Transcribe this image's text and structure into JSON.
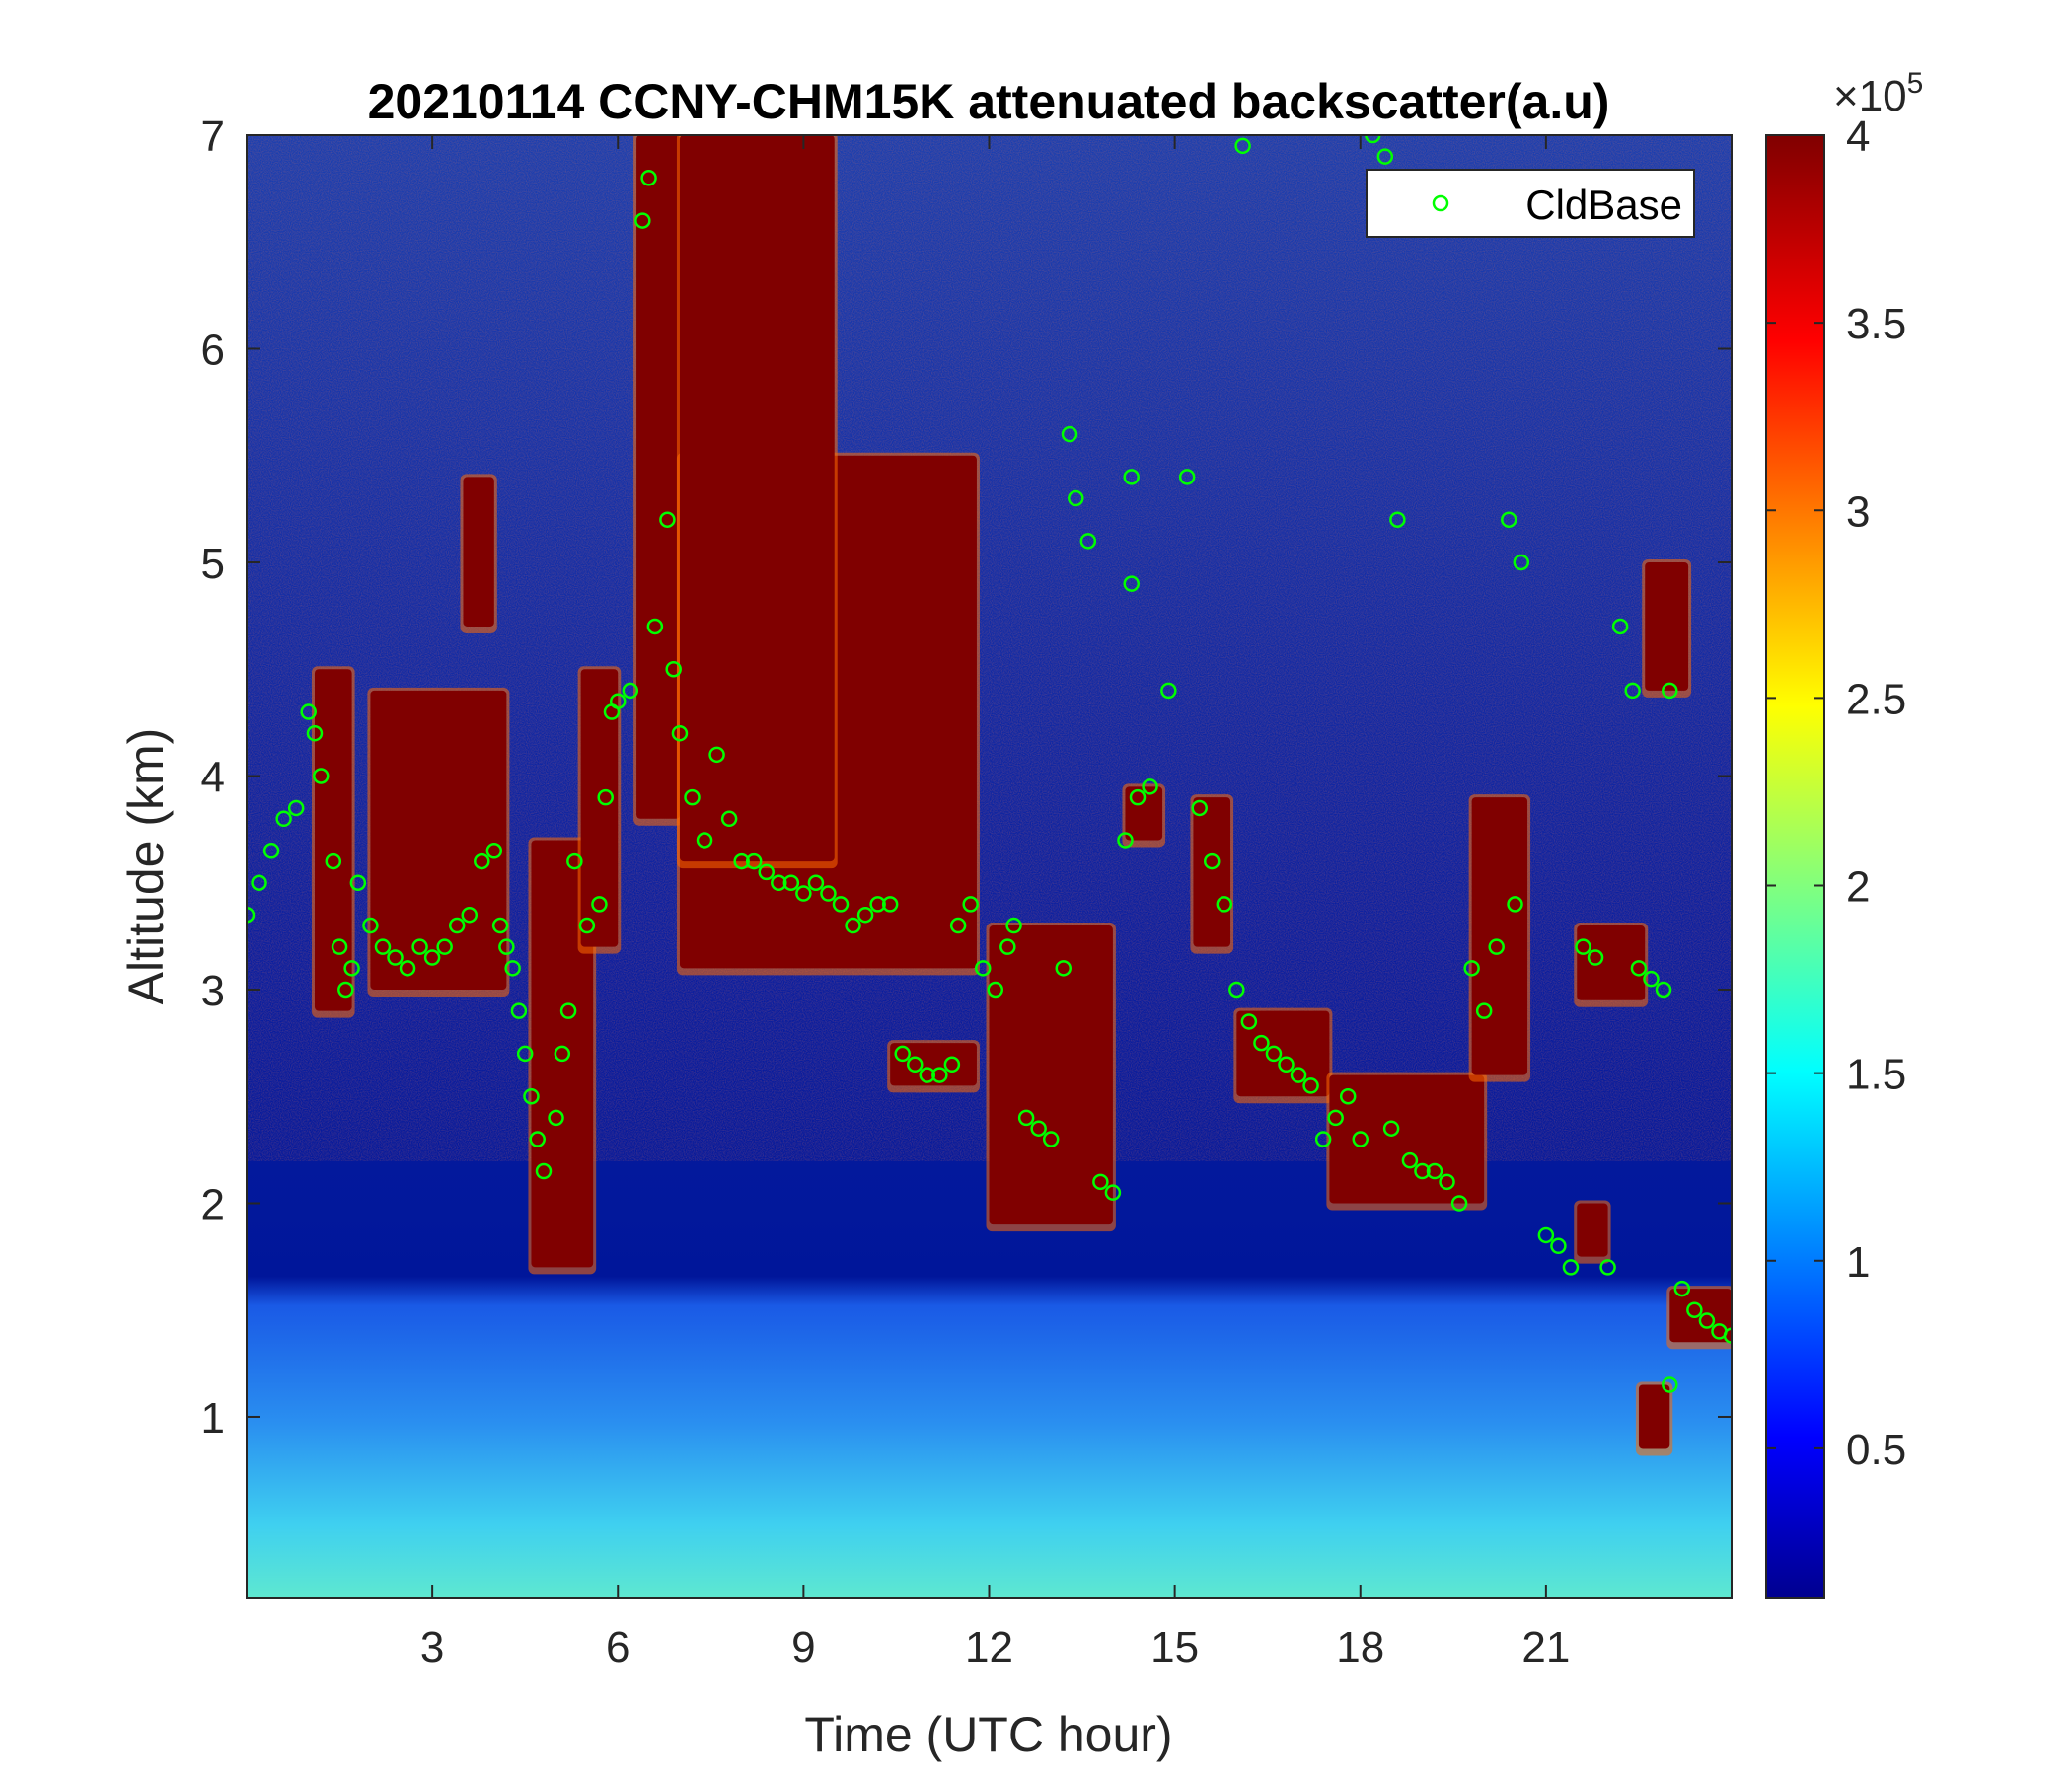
{
  "chart_data": {
    "type": "heatmap",
    "title": "20210114 CCNY-CHM15K attenuated backscatter(a.u)",
    "xlabel": "Time (UTC hour)",
    "ylabel": "Altitude (km)",
    "xlim": [
      0,
      24
    ],
    "ylim": [
      0.15,
      7
    ],
    "x_ticks": [
      3,
      6,
      9,
      12,
      15,
      18,
      21
    ],
    "y_ticks": [
      1,
      2,
      3,
      4,
      5,
      6,
      7
    ],
    "colormap": "jet",
    "colorbar": {
      "range": [
        0.1,
        4
      ],
      "ticks": [
        0.5,
        1,
        1.5,
        2,
        2.5,
        3,
        3.5,
        4
      ],
      "tick_labels": [
        "0.5",
        "1",
        "1.5",
        "2",
        "2.5",
        "3",
        "3.5",
        "4"
      ],
      "exponent_label": "×10",
      "exponent_power": "5"
    },
    "legend": {
      "entries": [
        "CldBase"
      ],
      "position": "top-right",
      "marker": "circle",
      "color": "#00ff00"
    },
    "grid": false,
    "cloud_regions": [
      {
        "x_start": 1.1,
        "x_end": 1.7,
        "bottom_km": 2.9,
        "top_km": 4.5
      },
      {
        "x_start": 2.0,
        "x_end": 4.2,
        "bottom_km": 3.0,
        "top_km": 4.4
      },
      {
        "x_start": 3.5,
        "x_end": 4.0,
        "bottom_km": 4.7,
        "top_km": 5.4
      },
      {
        "x_start": 4.6,
        "x_end": 5.6,
        "bottom_km": 1.7,
        "top_km": 3.7
      },
      {
        "x_start": 5.4,
        "x_end": 6.0,
        "bottom_km": 3.2,
        "top_km": 4.5
      },
      {
        "x_start": 6.3,
        "x_end": 7.0,
        "bottom_km": 3.8,
        "top_km": 7.0
      },
      {
        "x_start": 7.0,
        "x_end": 11.8,
        "bottom_km": 3.1,
        "top_km": 5.5
      },
      {
        "x_start": 7.0,
        "x_end": 9.5,
        "bottom_km": 3.6,
        "top_km": 7.0
      },
      {
        "x_start": 10.4,
        "x_end": 11.8,
        "bottom_km": 2.55,
        "top_km": 2.75
      },
      {
        "x_start": 12.0,
        "x_end": 14.0,
        "bottom_km": 1.9,
        "top_km": 3.3
      },
      {
        "x_start": 14.2,
        "x_end": 14.8,
        "bottom_km": 3.7,
        "top_km": 3.95
      },
      {
        "x_start": 15.3,
        "x_end": 15.9,
        "bottom_km": 3.2,
        "top_km": 3.9
      },
      {
        "x_start": 16.0,
        "x_end": 17.5,
        "bottom_km": 2.5,
        "top_km": 2.9
      },
      {
        "x_start": 17.5,
        "x_end": 20.0,
        "bottom_km": 2.0,
        "top_km": 2.6
      },
      {
        "x_start": 19.8,
        "x_end": 20.7,
        "bottom_km": 2.6,
        "top_km": 3.9
      },
      {
        "x_start": 21.5,
        "x_end": 22.6,
        "bottom_km": 2.95,
        "top_km": 3.3
      },
      {
        "x_start": 21.5,
        "x_end": 22.0,
        "bottom_km": 1.75,
        "top_km": 2.0
      },
      {
        "x_start": 22.6,
        "x_end": 23.3,
        "bottom_km": 4.4,
        "top_km": 5.0
      },
      {
        "x_start": 23.0,
        "x_end": 24.0,
        "bottom_km": 1.35,
        "top_km": 1.6
      },
      {
        "x_start": 22.5,
        "x_end": 23.0,
        "bottom_km": 0.85,
        "top_km": 1.15
      }
    ],
    "cloud_base_series": {
      "name": "CldBase",
      "points": [
        [
          0.0,
          3.35
        ],
        [
          0.2,
          3.5
        ],
        [
          0.4,
          3.65
        ],
        [
          0.6,
          3.8
        ],
        [
          0.8,
          3.85
        ],
        [
          1.0,
          4.3
        ],
        [
          1.1,
          4.2
        ],
        [
          1.2,
          4.0
        ],
        [
          1.4,
          3.6
        ],
        [
          1.5,
          3.2
        ],
        [
          1.6,
          3.0
        ],
        [
          1.7,
          3.1
        ],
        [
          1.8,
          3.5
        ],
        [
          2.0,
          3.3
        ],
        [
          2.2,
          3.2
        ],
        [
          2.4,
          3.15
        ],
        [
          2.6,
          3.1
        ],
        [
          2.8,
          3.2
        ],
        [
          3.0,
          3.15
        ],
        [
          3.2,
          3.2
        ],
        [
          3.4,
          3.3
        ],
        [
          3.6,
          3.35
        ],
        [
          3.8,
          3.6
        ],
        [
          4.0,
          3.65
        ],
        [
          4.1,
          3.3
        ],
        [
          4.2,
          3.2
        ],
        [
          4.3,
          3.1
        ],
        [
          4.4,
          2.9
        ],
        [
          4.5,
          2.7
        ],
        [
          4.6,
          2.5
        ],
        [
          4.7,
          2.3
        ],
        [
          4.8,
          2.15
        ],
        [
          5.0,
          2.4
        ],
        [
          5.1,
          2.7
        ],
        [
          5.2,
          2.9
        ],
        [
          5.3,
          3.6
        ],
        [
          5.5,
          3.3
        ],
        [
          5.7,
          3.4
        ],
        [
          5.8,
          3.9
        ],
        [
          5.9,
          4.3
        ],
        [
          6.0,
          4.35
        ],
        [
          6.2,
          4.4
        ],
        [
          6.4,
          6.6
        ],
        [
          6.5,
          6.8
        ],
        [
          6.6,
          4.7
        ],
        [
          6.8,
          5.2
        ],
        [
          6.9,
          4.5
        ],
        [
          7.0,
          4.2
        ],
        [
          7.2,
          3.9
        ],
        [
          7.4,
          3.7
        ],
        [
          7.6,
          4.1
        ],
        [
          7.8,
          3.8
        ],
        [
          8.0,
          3.6
        ],
        [
          8.2,
          3.6
        ],
        [
          8.4,
          3.55
        ],
        [
          8.6,
          3.5
        ],
        [
          8.8,
          3.5
        ],
        [
          9.0,
          3.45
        ],
        [
          9.2,
          3.5
        ],
        [
          9.4,
          3.45
        ],
        [
          9.6,
          3.4
        ],
        [
          9.8,
          3.3
        ],
        [
          10.0,
          3.35
        ],
        [
          10.2,
          3.4
        ],
        [
          10.4,
          3.4
        ],
        [
          10.6,
          2.7
        ],
        [
          10.8,
          2.65
        ],
        [
          11.0,
          2.6
        ],
        [
          11.2,
          2.6
        ],
        [
          11.4,
          2.65
        ],
        [
          11.5,
          3.3
        ],
        [
          11.7,
          3.4
        ],
        [
          11.9,
          3.1
        ],
        [
          12.1,
          3.0
        ],
        [
          12.3,
          3.2
        ],
        [
          12.4,
          3.3
        ],
        [
          12.6,
          2.4
        ],
        [
          12.8,
          2.35
        ],
        [
          13.0,
          2.3
        ],
        [
          13.2,
          3.1
        ],
        [
          13.3,
          5.6
        ],
        [
          13.4,
          5.3
        ],
        [
          13.6,
          5.1
        ],
        [
          13.8,
          2.1
        ],
        [
          14.0,
          2.05
        ],
        [
          14.2,
          3.7
        ],
        [
          14.4,
          3.9
        ],
        [
          14.6,
          3.95
        ],
        [
          14.3,
          4.9
        ],
        [
          14.3,
          5.4
        ],
        [
          14.9,
          4.4
        ],
        [
          15.2,
          5.4
        ],
        [
          15.4,
          3.85
        ],
        [
          15.6,
          3.6
        ],
        [
          15.8,
          3.4
        ],
        [
          16.0,
          3.0
        ],
        [
          16.1,
          6.95
        ],
        [
          16.2,
          2.85
        ],
        [
          16.4,
          2.75
        ],
        [
          16.6,
          2.7
        ],
        [
          16.8,
          2.65
        ],
        [
          17.0,
          2.6
        ],
        [
          17.2,
          2.55
        ],
        [
          17.4,
          2.3
        ],
        [
          17.6,
          2.4
        ],
        [
          17.8,
          2.5
        ],
        [
          18.0,
          2.3
        ],
        [
          18.2,
          7.0
        ],
        [
          18.4,
          6.9
        ],
        [
          18.5,
          2.35
        ],
        [
          18.6,
          5.2
        ],
        [
          18.8,
          2.2
        ],
        [
          19.0,
          2.15
        ],
        [
          19.2,
          2.15
        ],
        [
          19.4,
          2.1
        ],
        [
          19.6,
          2.0
        ],
        [
          19.8,
          3.1
        ],
        [
          20.0,
          2.9
        ],
        [
          20.2,
          3.2
        ],
        [
          20.4,
          5.2
        ],
        [
          20.6,
          5.0
        ],
        [
          20.5,
          3.4
        ],
        [
          21.0,
          1.85
        ],
        [
          21.2,
          1.8
        ],
        [
          21.4,
          1.7
        ],
        [
          21.6,
          3.2
        ],
        [
          21.8,
          3.15
        ],
        [
          22.0,
          1.7
        ],
        [
          22.2,
          4.7
        ],
        [
          22.4,
          4.4
        ],
        [
          22.5,
          3.1
        ],
        [
          22.7,
          3.05
        ],
        [
          22.9,
          3.0
        ],
        [
          23.0,
          4.4
        ],
        [
          23.2,
          1.6
        ],
        [
          23.4,
          1.5
        ],
        [
          23.6,
          1.45
        ],
        [
          23.8,
          1.4
        ],
        [
          24.0,
          1.38
        ],
        [
          23.0,
          1.15
        ]
      ]
    }
  }
}
